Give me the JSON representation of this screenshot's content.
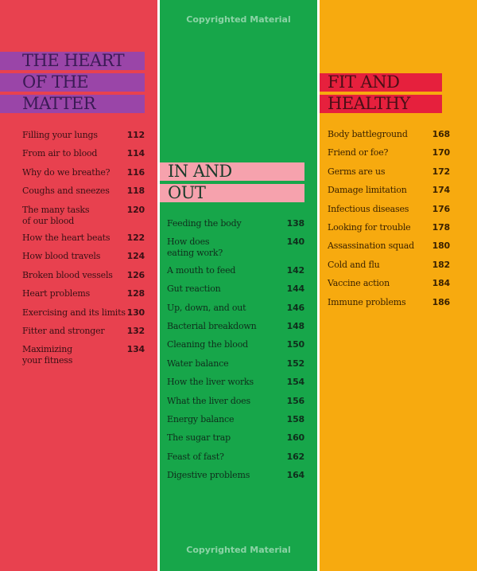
{
  "watermark": "Copyrighted Material",
  "sections": [
    {
      "heading": [
        "THE HEART",
        "OF THE",
        "MATTER"
      ],
      "entries": [
        {
          "title": [
            "Filling your lungs"
          ],
          "page": "112"
        },
        {
          "title": [
            "From air to blood"
          ],
          "page": "114"
        },
        {
          "title": [
            "Why do we breathe?"
          ],
          "page": "116"
        },
        {
          "title": [
            "Coughs and sneezes"
          ],
          "page": "118"
        },
        {
          "title": [
            "The many tasks",
            "of our blood"
          ],
          "page": "120"
        },
        {
          "title": [
            "How the heart beats"
          ],
          "page": "122"
        },
        {
          "title": [
            "How blood travels"
          ],
          "page": "124"
        },
        {
          "title": [
            "Broken blood vessels"
          ],
          "page": "126"
        },
        {
          "title": [
            "Heart problems"
          ],
          "page": "128"
        },
        {
          "title": [
            "Exercising and its limits"
          ],
          "page": "130"
        },
        {
          "title": [
            "Fitter and stronger"
          ],
          "page": "132"
        },
        {
          "title": [
            "Maximizing",
            "your fitness"
          ],
          "page": "134"
        }
      ]
    },
    {
      "heading": [
        "IN AND",
        "OUT"
      ],
      "entries": [
        {
          "title": [
            "Feeding the body"
          ],
          "page": "138"
        },
        {
          "title": [
            "How does",
            "eating work?"
          ],
          "page": "140"
        },
        {
          "title": [
            "A mouth to feed"
          ],
          "page": "142"
        },
        {
          "title": [
            "Gut reaction"
          ],
          "page": "144"
        },
        {
          "title": [
            "Up, down, and out"
          ],
          "page": "146"
        },
        {
          "title": [
            "Bacterial breakdown"
          ],
          "page": "148"
        },
        {
          "title": [
            "Cleaning the blood"
          ],
          "page": "150"
        },
        {
          "title": [
            "Water balance"
          ],
          "page": "152"
        },
        {
          "title": [
            "How the liver works"
          ],
          "page": "154"
        },
        {
          "title": [
            "What the liver does"
          ],
          "page": "156"
        },
        {
          "title": [
            "Energy balance"
          ],
          "page": "158"
        },
        {
          "title": [
            "The sugar trap"
          ],
          "page": "160"
        },
        {
          "title": [
            "Feast of fast?"
          ],
          "page": "162"
        },
        {
          "title": [
            "Digestive problems"
          ],
          "page": "164"
        }
      ]
    },
    {
      "heading": [
        "FIT AND",
        "HEALTHY"
      ],
      "entries": [
        {
          "title": [
            "Body battleground"
          ],
          "page": "168"
        },
        {
          "title": [
            "Friend or foe?"
          ],
          "page": "170"
        },
        {
          "title": [
            "Germs are us"
          ],
          "page": "172"
        },
        {
          "title": [
            "Damage limitation"
          ],
          "page": "174"
        },
        {
          "title": [
            "Infectious diseases"
          ],
          "page": "176"
        },
        {
          "title": [
            "Looking for trouble"
          ],
          "page": "178"
        },
        {
          "title": [
            "Assassination squad"
          ],
          "page": "180"
        },
        {
          "title": [
            "Cold and flu"
          ],
          "page": "182"
        },
        {
          "title": [
            "Vaccine action"
          ],
          "page": "184"
        },
        {
          "title": [
            "Immune problems"
          ],
          "page": "186"
        }
      ]
    }
  ]
}
